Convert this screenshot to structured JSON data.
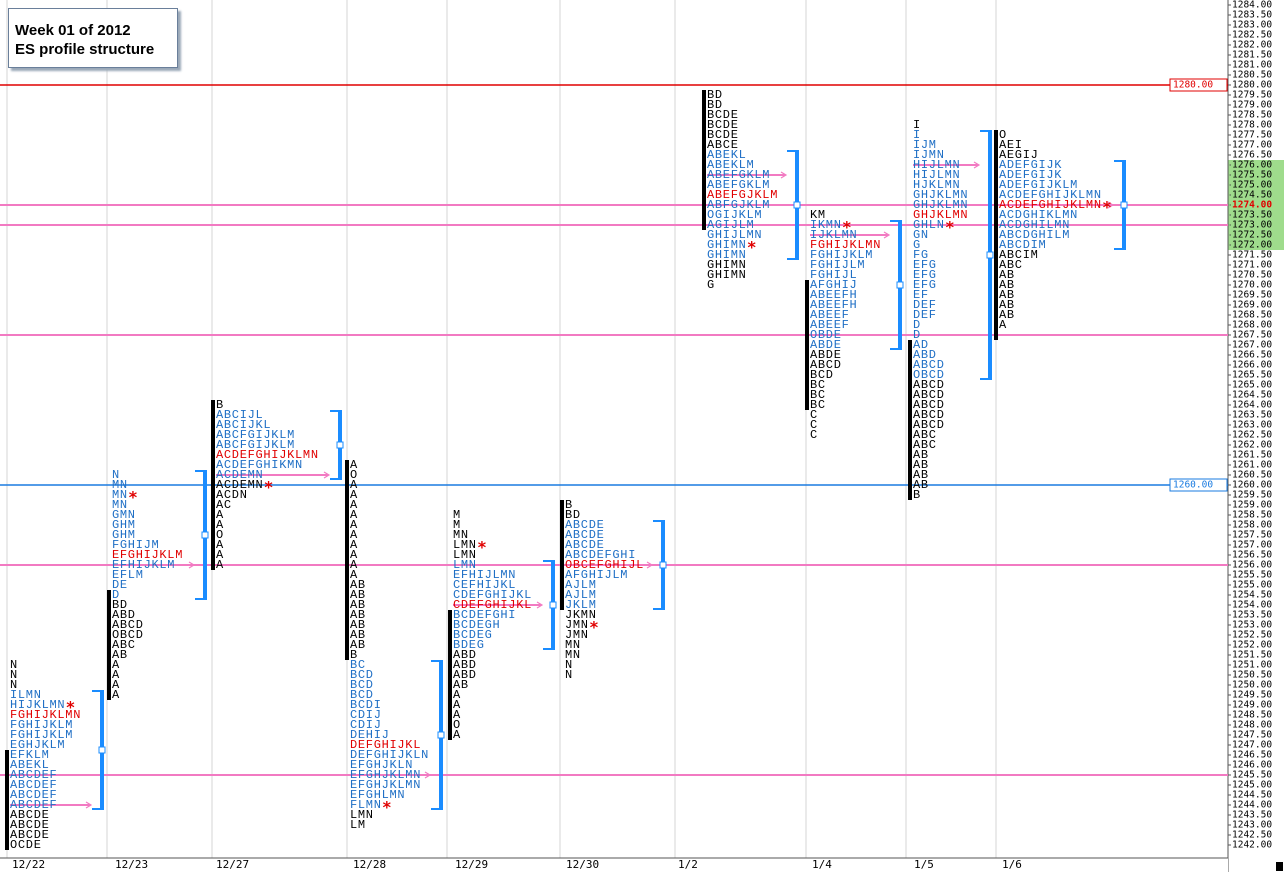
{
  "chart_data": {
    "type": "market_profile",
    "title": "Week 01 of 2012",
    "subtitle": "ES profile structure",
    "ylim": [
      1242,
      1284
    ],
    "yticks": [
      {
        "value": 1284,
        "label": "1284.00"
      },
      {
        "value": 1283.5,
        "label": "1283.50"
      },
      {
        "value": 1283,
        "label": "1283.00"
      },
      {
        "value": 1282.5,
        "label": "1282.50"
      },
      {
        "value": 1282,
        "label": "1282.00"
      },
      {
        "value": 1281.5,
        "label": "1281.50"
      },
      {
        "value": 1281,
        "label": "1281.00"
      },
      {
        "value": 1280.5,
        "label": "1280.50"
      },
      {
        "value": 1280,
        "label": "1280.00"
      },
      {
        "value": 1279.5,
        "label": "1279.50"
      },
      {
        "value": 1279,
        "label": "1279.00"
      },
      {
        "value": 1278.5,
        "label": "1278.50"
      },
      {
        "value": 1278,
        "label": "1278.00"
      },
      {
        "value": 1277.5,
        "label": "1277.50"
      },
      {
        "value": 1277,
        "label": "1277.00"
      },
      {
        "value": 1276.5,
        "label": "1276.50"
      },
      {
        "value": 1276,
        "label": "1276.00"
      },
      {
        "value": 1275.5,
        "label": "1275.50"
      },
      {
        "value": 1275,
        "label": "1275.00"
      },
      {
        "value": 1274.5,
        "label": "1274.50"
      },
      {
        "value": 1274,
        "label": "1274.00"
      },
      {
        "value": 1273.5,
        "label": "1273.50"
      },
      {
        "value": 1273,
        "label": "1273.00"
      },
      {
        "value": 1272.5,
        "label": "1272.50"
      },
      {
        "value": 1272,
        "label": "1272.00"
      },
      {
        "value": 1271.5,
        "label": "1271.50"
      },
      {
        "value": 1271,
        "label": "1271.00"
      },
      {
        "value": 1270.5,
        "label": "1270.50"
      },
      {
        "value": 1270,
        "label": "1270.00"
      },
      {
        "value": 1269.5,
        "label": "1269.50"
      },
      {
        "value": 1269,
        "label": "1269.00"
      },
      {
        "value": 1268.5,
        "label": "1268.50"
      },
      {
        "value": 1268,
        "label": "1268.00"
      },
      {
        "value": 1267.5,
        "label": "1267.50"
      },
      {
        "value": 1267,
        "label": "1267.00"
      },
      {
        "value": 1266.5,
        "label": "1266.50"
      },
      {
        "value": 1266,
        "label": "1266.00"
      },
      {
        "value": 1265.5,
        "label": "1265.50"
      },
      {
        "value": 1265,
        "label": "1265.00"
      },
      {
        "value": 1264.5,
        "label": "1264.50"
      },
      {
        "value": 1264,
        "label": "1264.00"
      },
      {
        "value": 1263.5,
        "label": "1263.50"
      },
      {
        "value": 1263,
        "label": "1263.00"
      },
      {
        "value": 1262.5,
        "label": "1262.50"
      },
      {
        "value": 1262,
        "label": "1262.00"
      },
      {
        "value": 1261.5,
        "label": "1261.50"
      },
      {
        "value": 1261,
        "label": "1261.00"
      },
      {
        "value": 1260.5,
        "label": "1260.50"
      },
      {
        "value": 1260,
        "label": "1260.00"
      },
      {
        "value": 1259.5,
        "label": "1259.50"
      },
      {
        "value": 1259,
        "label": "1259.00"
      },
      {
        "value": 1258.5,
        "label": "1258.50"
      },
      {
        "value": 1258,
        "label": "1258.00"
      },
      {
        "value": 1257.5,
        "label": "1257.50"
      },
      {
        "value": 1257,
        "label": "1257.00"
      },
      {
        "value": 1256.5,
        "label": "1256.50"
      },
      {
        "value": 1256,
        "label": "1256.00"
      },
      {
        "value": 1255.5,
        "label": "1255.50"
      },
      {
        "value": 1255,
        "label": "1255.00"
      },
      {
        "value": 1254.5,
        "label": "1254.50"
      },
      {
        "value": 1254,
        "label": "1254.00"
      },
      {
        "value": 1253.5,
        "label": "1253.50"
      },
      {
        "value": 1253,
        "label": "1253.00"
      },
      {
        "value": 1252.5,
        "label": "1252.50"
      },
      {
        "value": 1252,
        "label": "1252.00"
      },
      {
        "value": 1251.5,
        "label": "1251.50"
      },
      {
        "value": 1251,
        "label": "1251.00"
      },
      {
        "value": 1250.5,
        "label": "1250.50"
      },
      {
        "value": 1250,
        "label": "1250.00"
      },
      {
        "value": 1249.5,
        "label": "1249.50"
      },
      {
        "value": 1249,
        "label": "1249.00"
      },
      {
        "value": 1248.5,
        "label": "1248.50"
      },
      {
        "value": 1248,
        "label": "1248.00"
      },
      {
        "value": 1247.5,
        "label": "1247.50"
      },
      {
        "value": 1247,
        "label": "1247.00"
      },
      {
        "value": 1246.5,
        "label": "1246.50"
      },
      {
        "value": 1246,
        "label": "1246.00"
      },
      {
        "value": 1245.5,
        "label": "1245.50"
      },
      {
        "value": 1245,
        "label": "1245.00"
      },
      {
        "value": 1244.5,
        "label": "1244.50"
      },
      {
        "value": 1244,
        "label": "1244.00"
      },
      {
        "value": 1243.5,
        "label": "1243.50"
      },
      {
        "value": 1243,
        "label": "1243.00"
      },
      {
        "value": 1242.5,
        "label": "1242.50"
      },
      {
        "value": 1242,
        "label": "1242.00"
      }
    ],
    "highlight_band": [
      1272,
      1276
    ],
    "last_price": 1274,
    "close_marker": "*",
    "colors": {
      "value_area": "#1f6fc5",
      "poc": "#e00000",
      "outside": "#000000",
      "ib": "#000000",
      "va_bar": "#1a8cff",
      "mid": "#f27ac2",
      "close": "#e00000",
      "highlight": "#9fdc8c"
    },
    "levels": [
      {
        "value": 1280,
        "label": "1280.00",
        "color": "#e00000"
      },
      {
        "value": 1260,
        "label": "1260.00",
        "color": "#1a7be0"
      }
    ],
    "naked_pocs": [
      1273,
      1267.5,
      1256,
      1245.5,
      1274
    ],
    "sessions": [
      {
        "date": "12/22",
        "poc": 1248.5,
        "va": [
          1249.5,
          1244
        ],
        "ib": [
          1246.5,
          1242
        ],
        "mid": 1244,
        "close": 1249,
        "tpos": [
          "N",
          "N",
          "N",
          "ILMN",
          "HIJKLMN",
          "FGHIJKLMN",
          "FGHIJKLM",
          "FGHIJKLM",
          "EGHJKLM",
          "EFKLM",
          "ABEKL",
          "ABCDEF",
          "ABCDEF",
          "ABCDEF",
          "ABCDEF",
          "ABCDE",
          "ABCDE",
          "ABCDE",
          "OCDE"
        ],
        "prices": [
          1251,
          1250.5,
          1250,
          1249.5,
          1249,
          1248.5,
          1248,
          1247.5,
          1247,
          1246.5,
          1246,
          1245.5,
          1245,
          1244.5,
          1244,
          1243.5,
          1243,
          1242.5,
          1242
        ]
      },
      {
        "date": "12/23",
        "poc": 1256.5,
        "va": [
          1260.5,
          1254.5
        ],
        "ib": [
          1254.5,
          1249.5
        ],
        "mid": 1256,
        "close": 1259.5,
        "tpos": [
          "N",
          "MN",
          "MN",
          "MN",
          "GMN",
          "GHM",
          "GHM",
          "FGHIJM",
          "EFGHIJKLM",
          "EFHIJKLM",
          "EFLM",
          "DE",
          "D",
          "BD",
          "ABD",
          "ABCD",
          "OBCD",
          "ABC",
          "AB",
          "A",
          "A",
          "A",
          "A"
        ],
        "prices": [
          1260.5,
          1260,
          1259.5,
          1259,
          1258.5,
          1258,
          1257.5,
          1257,
          1256.5,
          1256,
          1255.5,
          1255,
          1254.5,
          1254,
          1253.5,
          1253,
          1252.5,
          1252,
          1251.5,
          1251,
          1250.5,
          1250,
          1249.5
        ]
      },
      {
        "date": "12/27",
        "poc": 1261.5,
        "va": [
          1263.5,
          1260.5
        ],
        "ib": [
          1264,
          1256
        ],
        "mid": 1260.5,
        "close": 1260,
        "tpos": [
          "B",
          "ABCIJL",
          "ABCIJKL",
          "ABCFGIJKLM",
          "ABCFGIJKLM",
          "ACDEFGHIJKLMN",
          "ACDEFGHIKMN",
          "ACDEMN",
          "ACDEMN",
          "ACDN",
          "AC",
          "A",
          "A",
          "O",
          "A",
          "A",
          "A"
        ],
        "prices": [
          1264,
          1263.5,
          1263,
          1262.5,
          1262,
          1261.5,
          1261,
          1260.5,
          1260,
          1259.5,
          1259,
          1258.5,
          1258,
          1257.5,
          1257,
          1256.5,
          1256
        ]
      },
      {
        "date": "12/28",
        "poc": 1247,
        "va": [
          1251,
          1244
        ],
        "ib": [
          1261,
          1251.5
        ],
        "mid": 1245.5,
        "close": 1244,
        "tpos": [
          "A",
          "O",
          "A",
          "A",
          "A",
          "A",
          "A",
          "A",
          "A",
          "A",
          "A",
          "A",
          "AB",
          "AB",
          "AB",
          "AB",
          "AB",
          "AB",
          "AB",
          "B",
          "BC",
          "BCD",
          "BCD",
          "BCD",
          "BCDI",
          "CDIJ",
          "CDIJ",
          "DEHIJ",
          "DEFGHIJKL",
          "DEFGHIJKLN",
          "EFGHJKLN",
          "EFGHJKLMN",
          "EFGHJKLMN",
          "EFGHLMN",
          "FLMN",
          "LMN",
          "LM"
        ],
        "prices": [
          1261,
          1260.5,
          1260,
          1259.5,
          1259,
          1258.5,
          1258,
          1257.5,
          1257,
          1256.5,
          1256,
          1255.5,
          1255,
          1254.5,
          1254,
          1253.5,
          1253,
          1252.5,
          1252,
          1251.5,
          1251,
          1250.5,
          1250,
          1249.5,
          1249,
          1248.5,
          1248,
          1247.5,
          1247,
          1246.5,
          1246,
          1245.5,
          1245,
          1244.5,
          1244,
          1243.5,
          1243
        ]
      },
      {
        "date": "12/29",
        "poc": 1254,
        "va": [
          1256,
          1252
        ],
        "ib": [
          1253.5,
          1247.5
        ],
        "mid": 1254,
        "close": 1257,
        "tpos": [
          "M",
          "M",
          "MN",
          "LMN",
          "LMN",
          "LMN",
          "EFHIJLMN",
          "CEFHIJKL",
          "CDEFGHIJKL",
          "CDEFGHIJKL",
          "BCDEFGHI",
          "BCDEGH",
          "BCDEG",
          "BDEG",
          "ABD",
          "ABD",
          "ABD",
          "AB",
          "A",
          "A",
          "A",
          "O",
          "A"
        ],
        "prices": [
          1258.5,
          1258,
          1257.5,
          1257,
          1256.5,
          1256,
          1255.5,
          1255,
          1254.5,
          1254,
          1253.5,
          1253,
          1252.5,
          1252,
          1251.5,
          1251,
          1250.5,
          1250,
          1249.5,
          1249,
          1248.5,
          1248,
          1247.5
        ]
      },
      {
        "date": "12/30",
        "poc": 1256,
        "va": [
          1258,
          1254
        ],
        "ib": [
          1259,
          1254
        ],
        "mid": 1256,
        "close": 1253,
        "tpos": [
          "B",
          "BD",
          "ABCDE",
          "ABCDE",
          "ABCDE",
          "ABCDEFGHI",
          "OBCEFGHIJL",
          "AFGHIJLM",
          "AJLM",
          "AJLM",
          "JKLM",
          "JKMN",
          "JMN",
          "JMN",
          "MN",
          "MN",
          "N",
          "N"
        ],
        "prices": [
          1259,
          1258.5,
          1258,
          1257.5,
          1257,
          1256.5,
          1256,
          1255.5,
          1255,
          1254.5,
          1254,
          1253.5,
          1253,
          1252.5,
          1252,
          1251.5,
          1251,
          1250.5
        ]
      },
      {
        "date": "1/2",
        "poc": 1274.5,
        "va": [
          1276.5,
          1271.5
        ],
        "ib": [
          1279.5,
          1273
        ],
        "mid": 1275.5,
        "close": 1272,
        "tpos": [
          "BD",
          "BD",
          "BCDE",
          "BCDE",
          "BCDE",
          "ABCE",
          "ABEKL",
          "ABEKLM",
          "ABEFGKLM",
          "ABEFGKLM",
          "ABEFGJKLM",
          "ABFGJKLM",
          "OGIJKLM",
          "AGIJLM",
          "GHIJLMN",
          "GHIMN",
          "GHIMN",
          "GHIMN",
          "GHIMN",
          "G"
        ],
        "prices": [
          1279.5,
          1279,
          1278.5,
          1278,
          1277.5,
          1277,
          1276.5,
          1276,
          1275.5,
          1275,
          1274.5,
          1274,
          1273.5,
          1273,
          1272.5,
          1272,
          1271.5,
          1271,
          1270.5,
          1270
        ]
      },
      {
        "date": "1/4",
        "poc": 1272,
        "va": [
          1273,
          1267
        ],
        "ib": [
          1270,
          1264
        ],
        "mid": 1272.5,
        "close": 1273,
        "tpos": [
          "KM",
          "IKMN",
          "IJKLMN",
          "FGHIJKLMN",
          "FGHIJKLM",
          "FGHIJLM",
          "FGHIJL",
          "AFGHIJ",
          "ABEEFH",
          "ABEEFH",
          "ABEEF",
          "ABEEF",
          "OBDE",
          "ABDE",
          "ABDE",
          "ABCD",
          "BCD",
          "BC",
          "BC",
          "BC",
          "C",
          "C",
          "C"
        ],
        "prices": [
          1273.5,
          1273,
          1272.5,
          1272,
          1271.5,
          1271,
          1270.5,
          1270,
          1269.5,
          1269,
          1268.5,
          1268,
          1267.5,
          1267,
          1266.5,
          1266,
          1265.5,
          1265,
          1264.5,
          1264,
          1263.5,
          1263,
          1262.5
        ]
      },
      {
        "date": "1/5",
        "poc": 1273.5,
        "va": [
          1277.5,
          1265.5
        ],
        "ib": [
          1267,
          1259.5
        ],
        "mid": 1276,
        "close": 1273,
        "tpos": [
          "I",
          "I",
          "IJM",
          "IJMN",
          "HIJLMN",
          "HIJLMN",
          "HJKLMN",
          "GHJKLMN",
          "GHJKLMN",
          "GHJKLMN",
          "GHLN",
          "GN",
          "G",
          "FG",
          "EFG",
          "EFG",
          "EFG",
          "EF",
          "DEF",
          "DEF",
          "D",
          "D",
          "AD",
          "ABD",
          "ABCD",
          "OBCD",
          "ABCD",
          "ABCD",
          "ABCD",
          "ABCD",
          "ABCD",
          "ABC",
          "ABC",
          "AB",
          "AB",
          "AB",
          "AB",
          "B"
        ],
        "prices": [
          1278,
          1277.5,
          1277,
          1276.5,
          1276,
          1275.5,
          1275,
          1274.5,
          1274,
          1273.5,
          1273,
          1272.5,
          1272,
          1271.5,
          1271,
          1270.5,
          1270,
          1269.5,
          1269,
          1268.5,
          1268,
          1267.5,
          1267,
          1266.5,
          1266,
          1265.5,
          1265,
          1264.5,
          1264,
          1263.5,
          1263,
          1262.5,
          1262,
          1261.5,
          1261,
          1260.5,
          1260,
          1259.5
        ]
      },
      {
        "date": "1/6",
        "poc": 1274,
        "va": [
          1276,
          1272
        ],
        "ib": [
          1277.5,
          1267.5
        ],
        "mid": 1274,
        "close": 1274,
        "tpos": [
          "O",
          "AEI",
          "AEGIJ",
          "ADEFGIJK",
          "ADEFGIJK",
          "ADEFGIJKLM",
          "ACDEFGHIJKLMN",
          "ACDEFGHIJKLMN",
          "ACDGHIKLMN",
          "ACDGHILMN",
          "ABCDGHILM",
          "ABCDIM",
          "ABCIM",
          "ABC",
          "AB",
          "AB",
          "AB",
          "AB",
          "AB",
          "A"
        ],
        "prices": [
          1277.5,
          1277,
          1276.5,
          1276,
          1275.5,
          1275,
          1274.5,
          1274,
          1273.5,
          1273,
          1272.5,
          1272,
          1271.5,
          1271,
          1270.5,
          1270,
          1269.5,
          1269,
          1268.5,
          1268
        ]
      }
    ]
  }
}
